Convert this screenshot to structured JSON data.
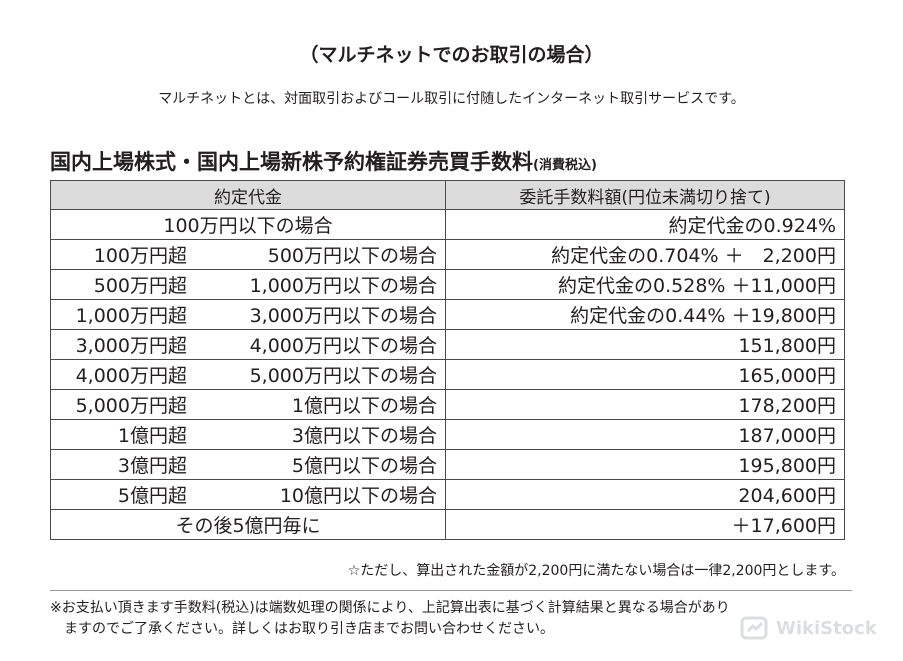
{
  "title": "（マルチネットでのお取引の場合）",
  "subtitle": "マルチネットとは、対面取引およびコール取引に付随したインターネット取引サービスです。",
  "section": {
    "heading": "国内上場株式・国内上場新株予約権証券売買手数料",
    "heading_note": "(消費税込)"
  },
  "table": {
    "headers": [
      "約定代金",
      "委託手数料額(円位未満切り捨て)"
    ],
    "rows": [
      {
        "range": "100万円以下の場合",
        "fee": "約定代金の0.924%"
      },
      {
        "from": "100万円超",
        "to": "500万円以下の場合",
        "fee": "約定代金の0.704% ＋　2,200円"
      },
      {
        "from": "500万円超",
        "to": "1,000万円以下の場合",
        "fee": "約定代金の0.528% ＋11,000円"
      },
      {
        "from": "1,000万円超",
        "to": "3,000万円以下の場合",
        "fee": "約定代金の0.44% ＋19,800円"
      },
      {
        "from": "3,000万円超",
        "to": "4,000万円以下の場合",
        "fee": "151,800円"
      },
      {
        "from": "4,000万円超",
        "to": "5,000万円以下の場合",
        "fee": "165,000円"
      },
      {
        "from": "5,000万円超",
        "to": "1億円以下の場合",
        "fee": "178,200円"
      },
      {
        "from": "1億円超",
        "to": "3億円以下の場合",
        "fee": "187,000円"
      },
      {
        "from": "3億円超",
        "to": "5億円以下の場合",
        "fee": "195,800円"
      },
      {
        "from": "5億円超",
        "to": "10億円以下の場合",
        "fee": "204,600円"
      },
      {
        "range": "その後5億円毎に",
        "fee": "＋17,600円"
      }
    ]
  },
  "footnote": "☆ただし、算出された金額が2,200円に満たない場合は一律2,200円とします。",
  "note": {
    "line1": "※お支払い頂きます手数料(税込)は端数処理の関係により、上記算出表に基づく計算結果と異なる場合があり",
    "line2": "ますのでご了承ください。詳しくはお取り引き店までお問い合わせください。"
  },
  "watermark": {
    "text": "WikiStock",
    "icon": "wikistock-logo-icon"
  }
}
